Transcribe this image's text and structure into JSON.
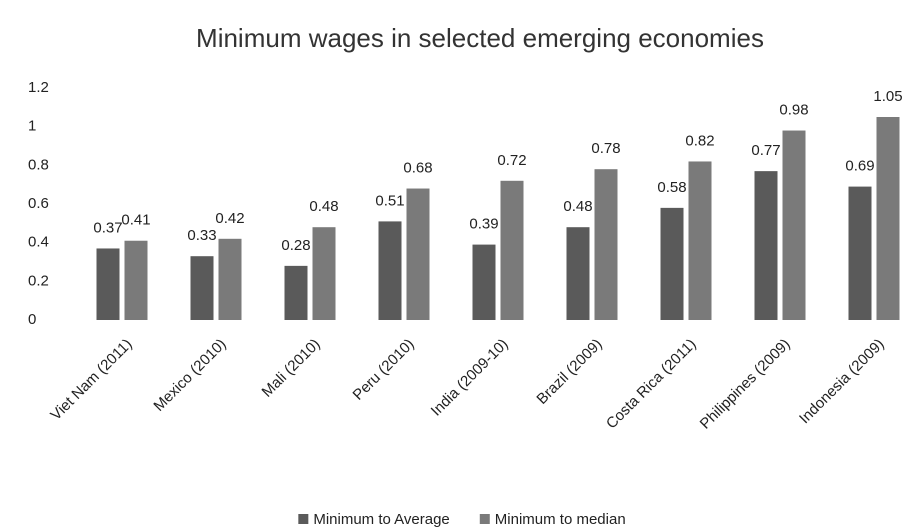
{
  "chart_data": {
    "type": "bar",
    "title": "Minimum wages in selected emerging economies",
    "categories": [
      "Viet Nam (2011)",
      "Mexico (2010)",
      "Mali (2010)",
      "Peru (2010)",
      "India (2009-10)",
      "Brazil (2009)",
      "Costa Rica (2011)",
      "Philippines (2009)",
      "Indonesia (2009)"
    ],
    "series": [
      {
        "name": "Minimum to Average",
        "color": "#5a5a5a",
        "values": [
          0.37,
          0.33,
          0.28,
          0.51,
          0.39,
          0.48,
          0.58,
          0.77,
          0.69
        ]
      },
      {
        "name": "Minimum to median",
        "color": "#7a7a7a",
        "values": [
          0.41,
          0.42,
          0.48,
          0.68,
          0.72,
          0.78,
          0.82,
          0.98,
          1.05
        ]
      }
    ],
    "ylim": [
      0,
      1.2
    ],
    "yticks": [
      0,
      0.2,
      0.4,
      0.6,
      0.8,
      1,
      1.2
    ],
    "grid": false,
    "legend": "bottom"
  }
}
